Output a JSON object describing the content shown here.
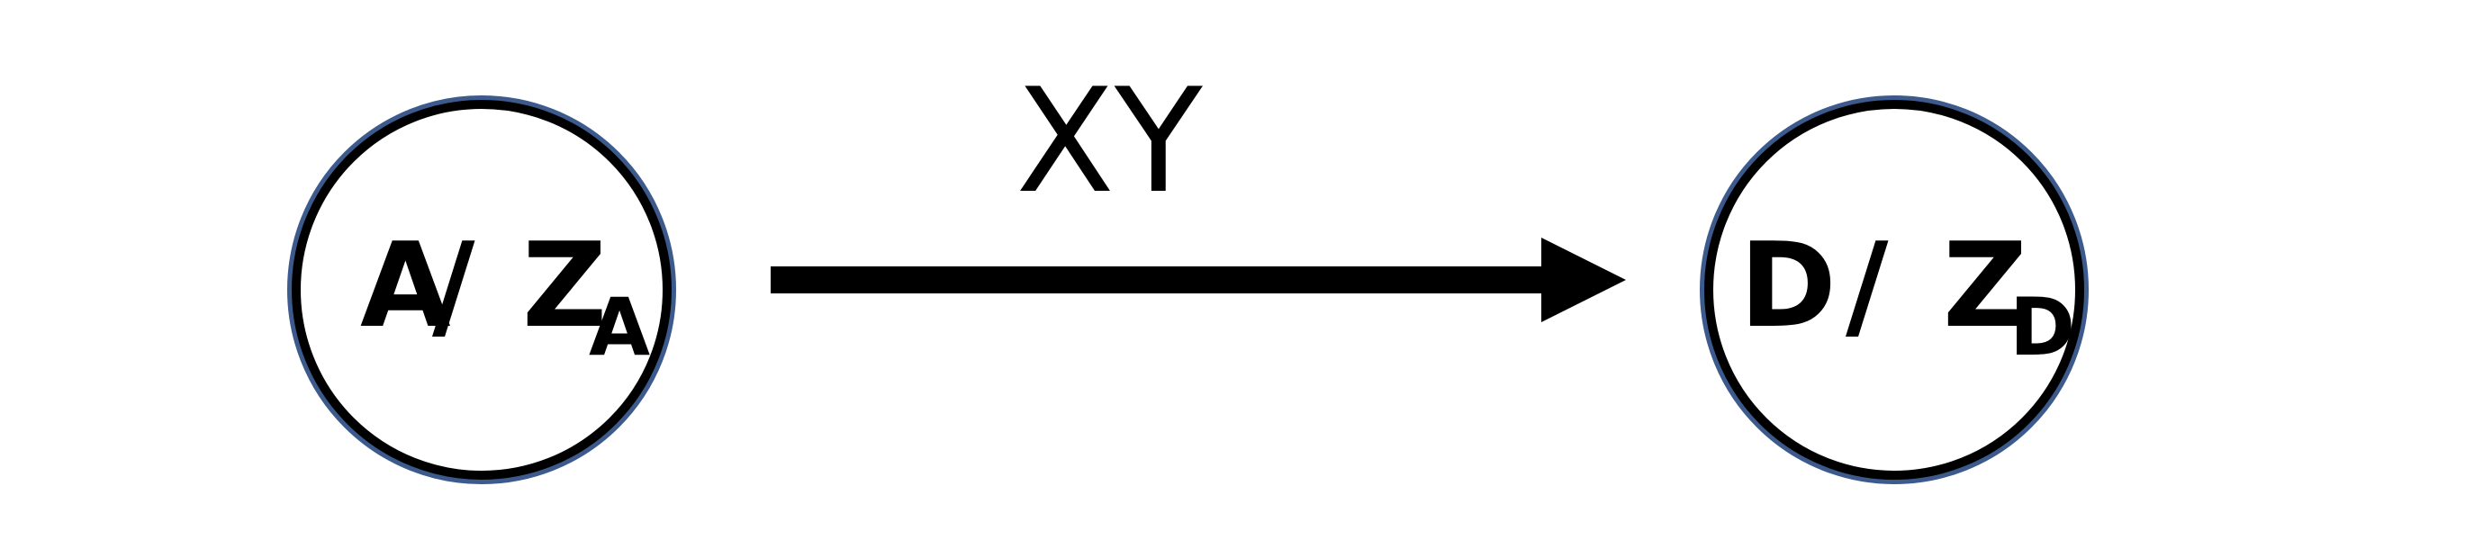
{
  "diagram": {
    "states": [
      {
        "name": "A",
        "separator": "/",
        "output": "Z",
        "output_subscript": "A"
      },
      {
        "name": "D",
        "separator": "/",
        "output": "Z",
        "output_subscript": "D"
      }
    ],
    "transition": {
      "from": "A",
      "to": "D",
      "label": "XY"
    },
    "colors": {
      "circle_outer": "#3c5a8c",
      "circle_inner": "#000000",
      "arrow": "#000000",
      "text": "#000000",
      "background": "#ffffff"
    }
  }
}
